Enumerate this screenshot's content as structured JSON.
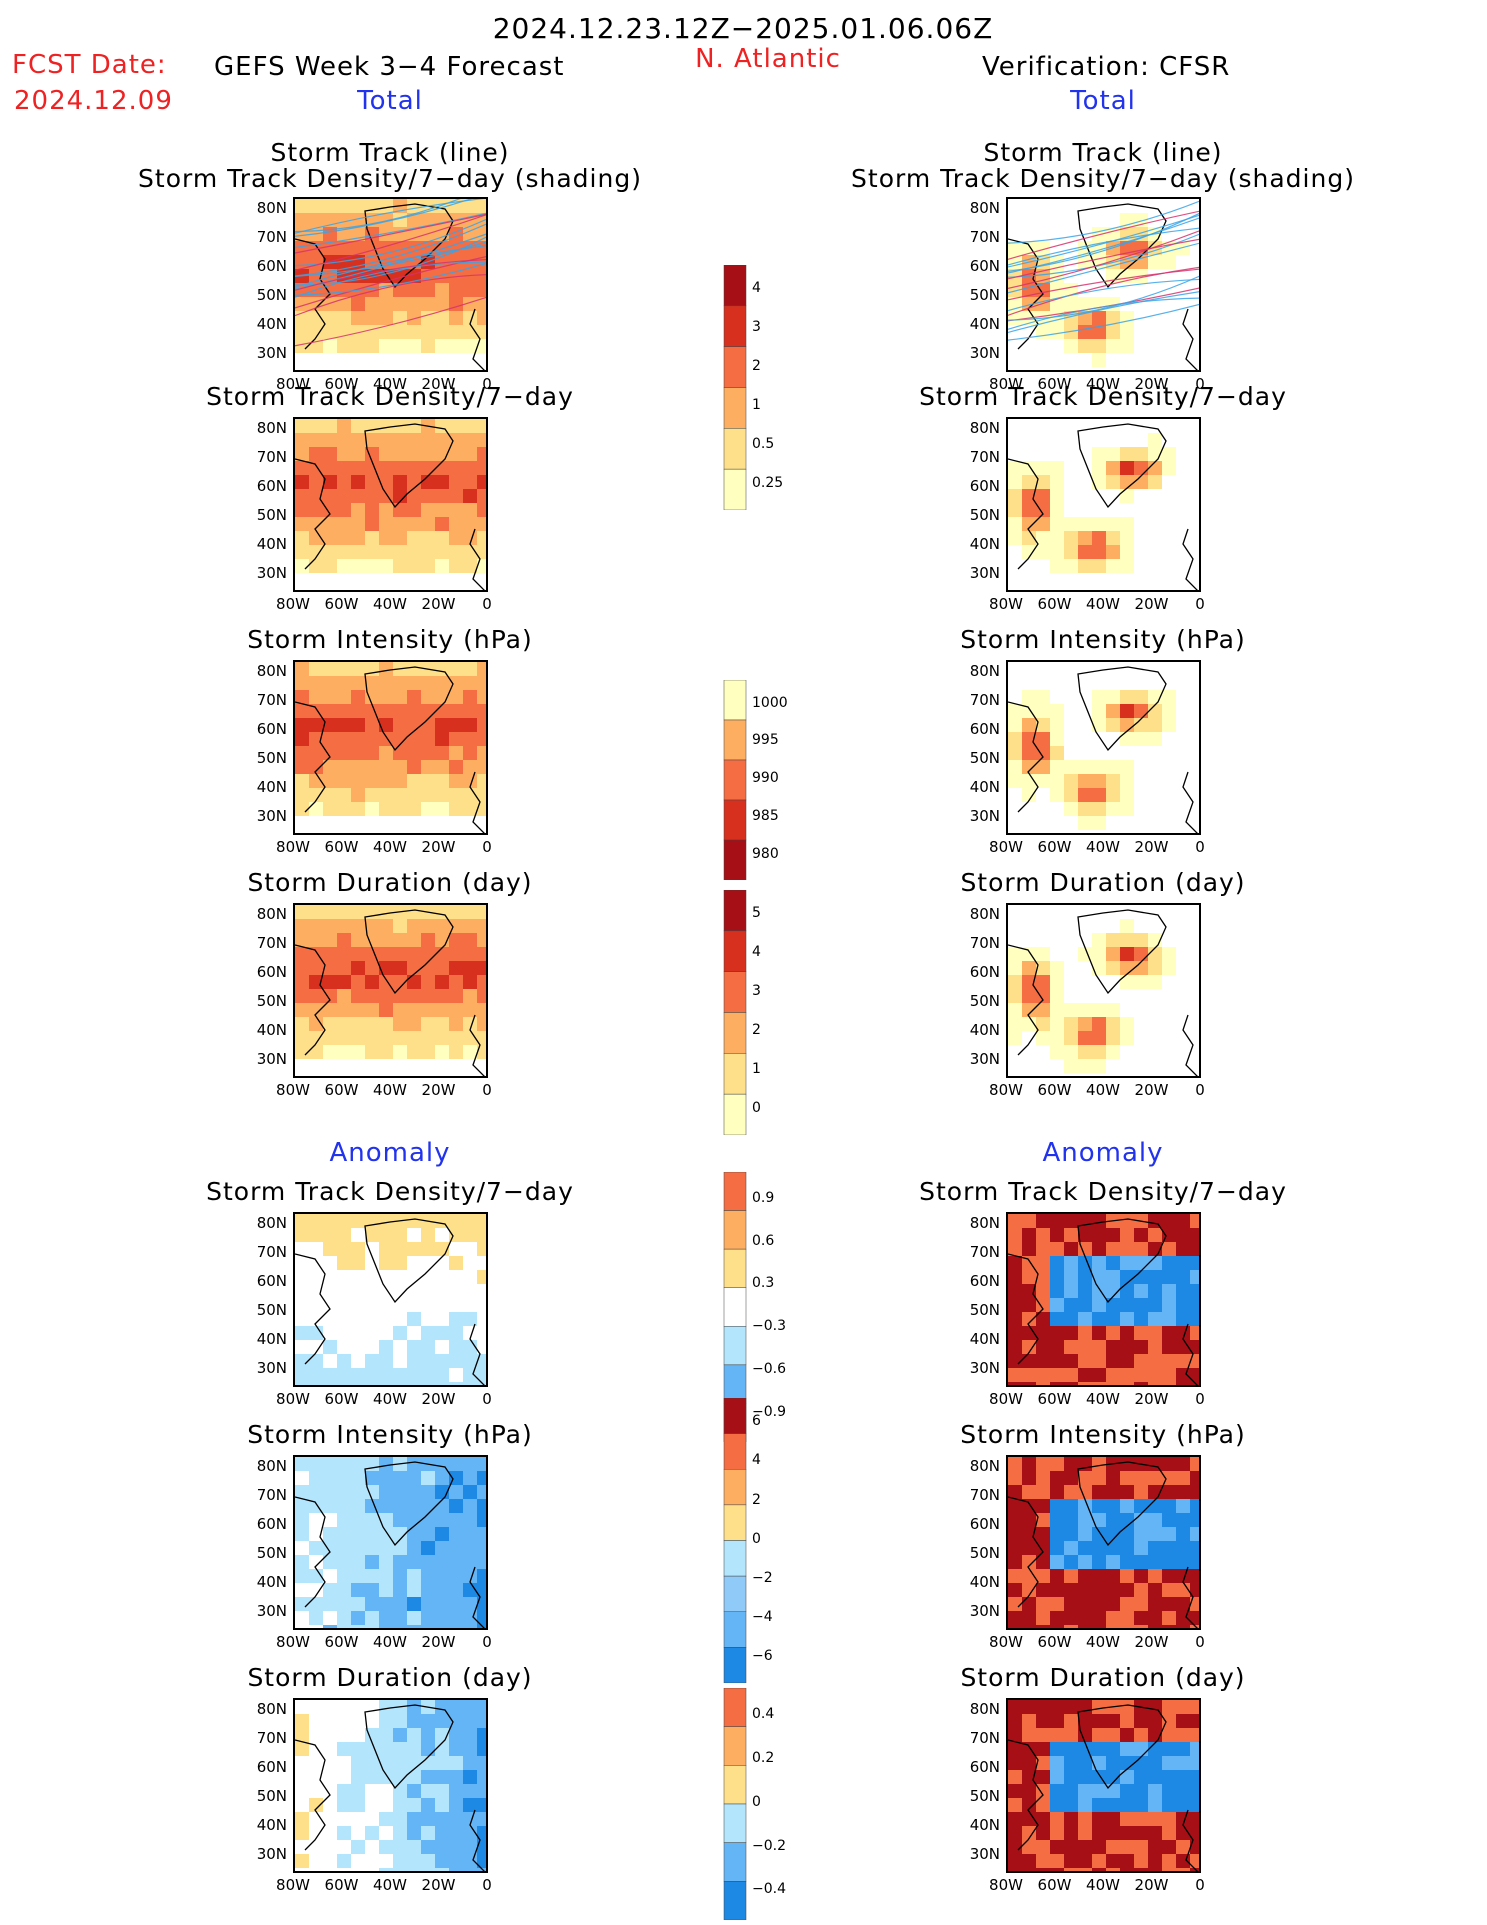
{
  "header": {
    "period": "2024.12.23.12Z−2025.01.06.06Z",
    "fcst_label": "FCST Date:",
    "fcst_date": "2024.12.09",
    "left_title": "GEFS Week 3−4 Forecast",
    "region": "N. Atlantic",
    "right_title": "Verification: CFSR"
  },
  "sections": {
    "total": "Total",
    "anomaly": "Anomaly"
  },
  "panels": [
    {
      "title1": "Storm Track (line)",
      "title2": "Storm Track Density/7−day (shading)"
    },
    {
      "title1": "Storm Track Density/7−day",
      "title2": ""
    },
    {
      "title1": "Storm Intensity (hPa)",
      "title2": ""
    },
    {
      "title1": "Storm Duration (day)",
      "title2": ""
    },
    {
      "title1": "Storm Track Density/7−day",
      "title2": ""
    },
    {
      "title1": "Storm Intensity (hPa)",
      "title2": ""
    },
    {
      "title1": "Storm Duration (day)",
      "title2": ""
    }
  ],
  "axes": {
    "lat_labels": [
      "80N",
      "70N",
      "60N",
      "50N",
      "40N",
      "30N"
    ],
    "lon_labels": [
      "80W",
      "60W",
      "40W",
      "20W",
      "0"
    ]
  },
  "colorbars": [
    {
      "name": "density",
      "labels": [
        "4",
        "3",
        "2",
        "1",
        "0.5",
        "0.25"
      ],
      "colors": [
        "#a50f15",
        "#d7301f",
        "#f46d43",
        "#fdae61",
        "#fee08b",
        "#ffffbf"
      ]
    },
    {
      "name": "intensity",
      "labels": [
        "1000",
        "995",
        "990",
        "985",
        "980"
      ],
      "colors": [
        "#ffffbf",
        "#fdae61",
        "#f46d43",
        "#d7301f",
        "#a50f15"
      ]
    },
    {
      "name": "duration",
      "labels": [
        "5",
        "4",
        "3",
        "2",
        "1",
        "0"
      ],
      "colors": [
        "#a50f15",
        "#d7301f",
        "#f46d43",
        "#fdae61",
        "#fee08b",
        "#ffffbf"
      ]
    },
    {
      "name": "density-anom",
      "labels": [
        "0.9",
        "0.6",
        "0.3",
        "−0.3",
        "−0.6",
        "−0.9"
      ],
      "colors": [
        "#f46d43",
        "#fdae61",
        "#fee08b",
        "#ffffff",
        "#b3e5fc",
        "#64b5f6",
        "#1e88e5"
      ]
    },
    {
      "name": "intensity-anom",
      "labels": [
        "6",
        "4",
        "2",
        "0",
        "−2",
        "−4",
        "−6"
      ],
      "colors": [
        "#a50f15",
        "#f46d43",
        "#fdae61",
        "#fee08b",
        "#b3e5fc",
        "#90caf9",
        "#64b5f6",
        "#1e88e5"
      ]
    },
    {
      "name": "duration-anom",
      "labels": [
        "0.4",
        "0.2",
        "0",
        "−0.2",
        "−0.4"
      ],
      "colors": [
        "#f46d43",
        "#fdae61",
        "#fee08b",
        "#b3e5fc",
        "#64b5f6",
        "#1e88e5"
      ]
    }
  ]
}
